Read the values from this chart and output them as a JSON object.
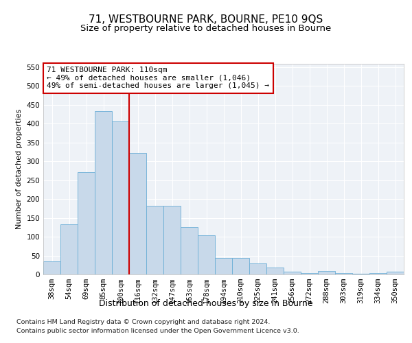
{
  "title1": "71, WESTBOURNE PARK, BOURNE, PE10 9QS",
  "title2": "Size of property relative to detached houses in Bourne",
  "xlabel": "Distribution of detached houses by size in Bourne",
  "ylabel": "Number of detached properties",
  "categories": [
    "38sqm",
    "54sqm",
    "69sqm",
    "85sqm",
    "100sqm",
    "116sqm",
    "132sqm",
    "147sqm",
    "163sqm",
    "178sqm",
    "194sqm",
    "210sqm",
    "225sqm",
    "241sqm",
    "256sqm",
    "272sqm",
    "288sqm",
    "303sqm",
    "319sqm",
    "334sqm",
    "350sqm"
  ],
  "values": [
    35,
    133,
    271,
    433,
    406,
    323,
    182,
    182,
    125,
    104,
    44,
    44,
    30,
    19,
    7,
    4,
    10,
    4,
    2,
    4,
    7
  ],
  "bar_color": "#c8d9ea",
  "bar_edge_color": "#6aaed6",
  "red_line_x": 4.5,
  "annotation_line1": "71 WESTBOURNE PARK: 110sqm",
  "annotation_line2": "← 49% of detached houses are smaller (1,046)",
  "annotation_line3": "49% of semi-detached houses are larger (1,045) →",
  "annotation_box_color": "#ffffff",
  "annotation_box_edge": "#cc0000",
  "red_line_color": "#cc0000",
  "ylim": [
    0,
    560
  ],
  "yticks": [
    0,
    50,
    100,
    150,
    200,
    250,
    300,
    350,
    400,
    450,
    500,
    550
  ],
  "footnote1": "Contains HM Land Registry data © Crown copyright and database right 2024.",
  "footnote2": "Contains public sector information licensed under the Open Government Licence v3.0.",
  "background_color": "#eef2f7",
  "grid_color": "#ffffff",
  "title1_fontsize": 11,
  "title2_fontsize": 9.5,
  "ylabel_fontsize": 8,
  "xlabel_fontsize": 9,
  "tick_fontsize": 7.5,
  "annotation_fontsize": 8,
  "footnote_fontsize": 6.8
}
